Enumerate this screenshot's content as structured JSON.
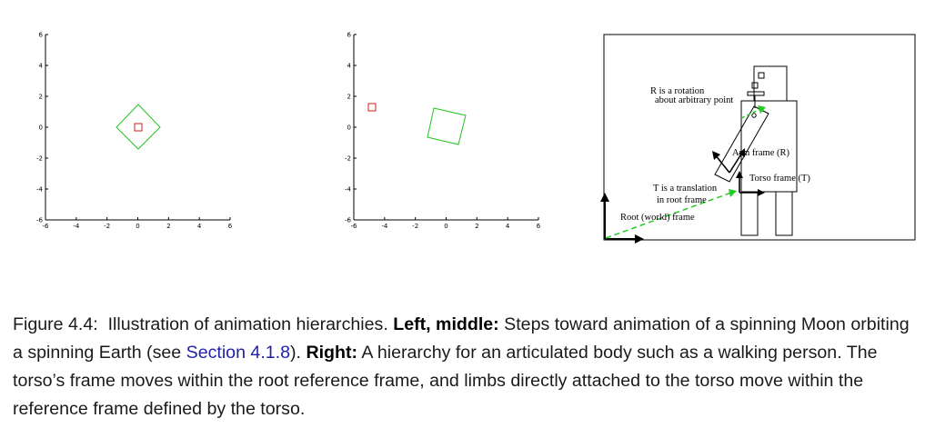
{
  "plots": [
    {
      "ticks_x": [
        "-6",
        "-4",
        "-2",
        "0",
        "2",
        "4",
        "6"
      ],
      "ticks_y": [
        "6",
        "4",
        "2",
        "0",
        "-2",
        "-4",
        "-6"
      ],
      "earth_color": "#22c322",
      "moon_color": "#cc2222"
    },
    {
      "ticks_x": [
        "-6",
        "-4",
        "-2",
        "0",
        "2",
        "4",
        "6"
      ],
      "ticks_y": [
        "6",
        "4",
        "2",
        "0",
        "-2",
        "-4",
        "-6"
      ],
      "earth_color": "#22c322",
      "moon_color": "#cc2222"
    }
  ],
  "diagram": {
    "label_rotation_1": "R is a rotation",
    "label_rotation_2": "about arbitrary point",
    "label_arm": "Arm frame (R)",
    "label_torso": "Torso frame (T)",
    "label_translation_1": "T is a translation",
    "label_translation_2": "in root frame",
    "label_root": "Root (world) frame",
    "arrow_color": "#22cc22"
  },
  "caption": {
    "label": "Figure 4.4:",
    "text1": "Illustration of animation hierarchies.",
    "bold1": "Left, middle:",
    "text2": "Steps toward animation of a spinning Moon orbiting a spinning Earth (see",
    "link": "Section 4.1.8",
    "text3": ").",
    "bold2": "Right:",
    "text4": "A hierarchy for an articulated body such as a walking person. The torso’s frame moves within the root reference frame, and limbs directly attached to the torso move within the reference frame defined by the torso."
  }
}
